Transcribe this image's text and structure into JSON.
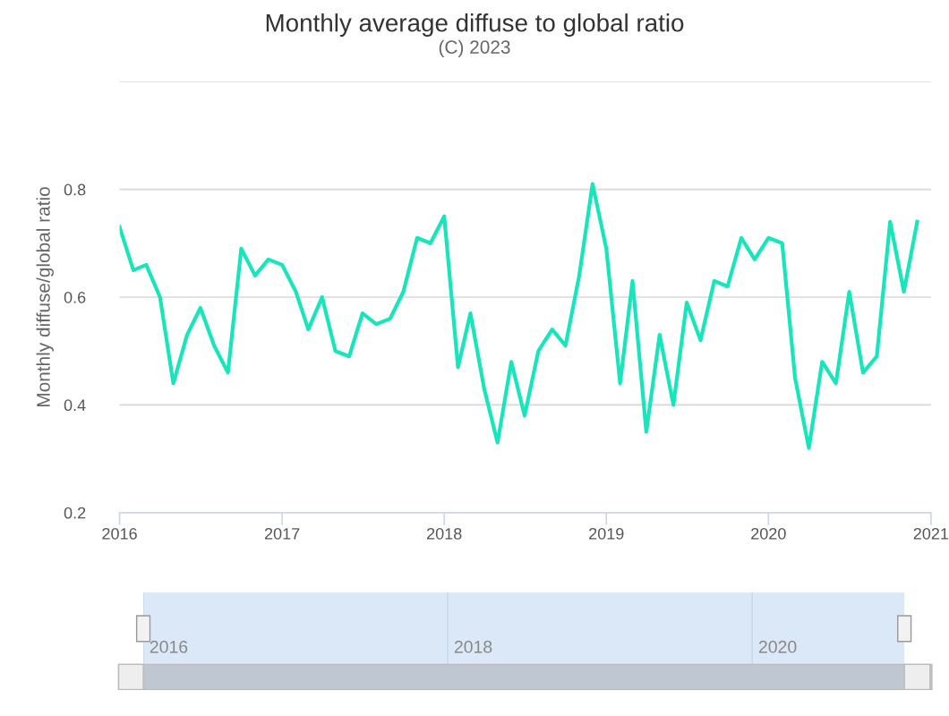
{
  "chart_data": [
    {
      "type": "line",
      "title": "Monthly average diffuse to global ratio",
      "subtitle": "(C) 2023",
      "ylabel": "Monthly diffuse/global ratio",
      "x": [
        "2016-01",
        "2016-02",
        "2016-03",
        "2016-04",
        "2016-05",
        "2016-06",
        "2016-07",
        "2016-08",
        "2016-09",
        "2016-10",
        "2016-11",
        "2016-12",
        "2017-01",
        "2017-02",
        "2017-03",
        "2017-04",
        "2017-05",
        "2017-06",
        "2017-07",
        "2017-08",
        "2017-09",
        "2017-10",
        "2017-11",
        "2017-12",
        "2018-01",
        "2018-02",
        "2018-03",
        "2018-04",
        "2018-05",
        "2018-06",
        "2018-07",
        "2018-08",
        "2018-09",
        "2018-10",
        "2018-11",
        "2018-12",
        "2019-01",
        "2019-02",
        "2019-03",
        "2019-04",
        "2019-05",
        "2019-06",
        "2019-07",
        "2019-08",
        "2019-09",
        "2019-10",
        "2019-11",
        "2019-12",
        "2020-01",
        "2020-02",
        "2020-03",
        "2020-04",
        "2020-05",
        "2020-06",
        "2020-07",
        "2020-08",
        "2020-09",
        "2020-10",
        "2020-11",
        "2020-12"
      ],
      "series": [
        {
          "color": "#17e6bd",
          "values": [
            0.73,
            0.65,
            0.66,
            0.6,
            0.44,
            0.53,
            0.58,
            0.51,
            0.46,
            0.69,
            0.64,
            0.67,
            0.66,
            0.61,
            0.54,
            0.6,
            0.5,
            0.49,
            0.57,
            0.55,
            0.56,
            0.61,
            0.71,
            0.7,
            0.75,
            0.47,
            0.57,
            0.43,
            0.33,
            0.48,
            0.38,
            0.5,
            0.54,
            0.51,
            0.64,
            0.81,
            0.69,
            0.44,
            0.63,
            0.35,
            0.53,
            0.4,
            0.59,
            0.52,
            0.63,
            0.62,
            0.71,
            0.67,
            0.71,
            0.7,
            0.45,
            0.32,
            0.48,
            0.44,
            0.61,
            0.46,
            0.49,
            0.74,
            0.61,
            0.74
          ]
        }
      ],
      "xlim": [
        "2016-01",
        "2021-01"
      ],
      "xticks": [
        "2016",
        "2017",
        "2018",
        "2019",
        "2020",
        "2021"
      ],
      "ylim": [
        0.2,
        1.0
      ],
      "yticks": [
        0.2,
        0.4,
        0.6,
        0.8,
        {
          "value": 1.0,
          "label": null
        }
      ],
      "grid": "y",
      "marker": "none",
      "line_style": "solid"
    },
    {
      "type": "other",
      "annotations": [
        "2016",
        "2018",
        "2020"
      ]
    }
  ]
}
